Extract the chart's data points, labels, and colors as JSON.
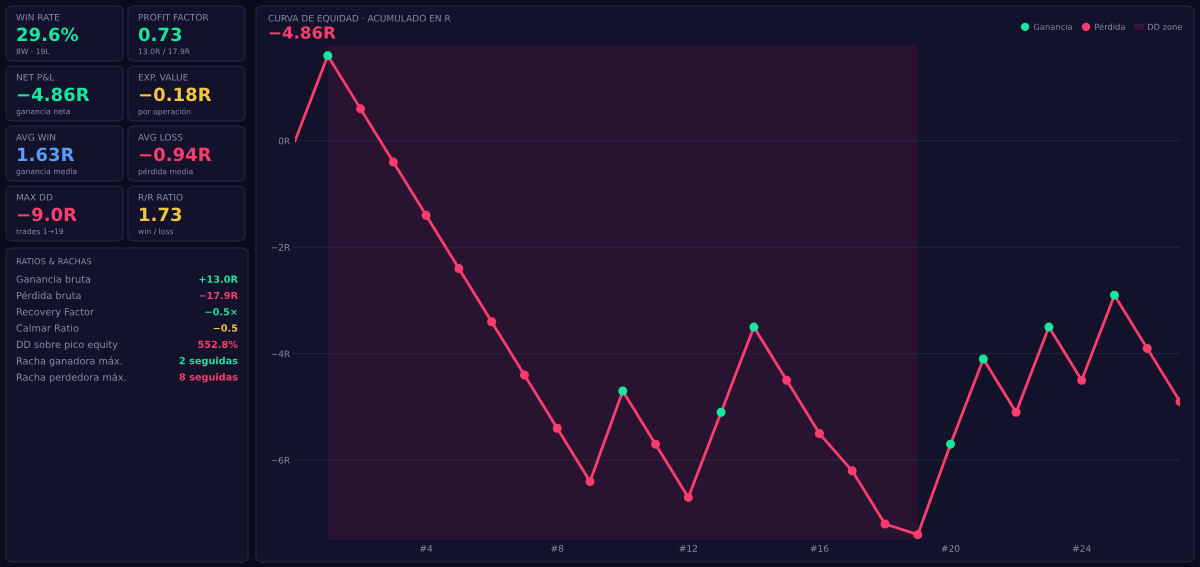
{
  "chart_data": [
    {
      "type": "other",
      "categories": [
        "WIN RATE",
        "PROFIT FACTOR",
        "NET P&L",
        "EXP. VALUE",
        "AVG WIN",
        "AVG LOSS",
        "MAX DD",
        "R/R RATIO"
      ],
      "value_labels": [
        "29.6%",
        "0.73",
        "−4.86R",
        "−0.18R",
        "1.63R",
        "−0.94R",
        "−9.0R",
        "1.73"
      ],
      "annotations": [
        "8W · 19L",
        "13.0R / 17.9R",
        "ganancia neta",
        "por operación",
        "ganancia media",
        "pérdida media",
        "trades 1→19",
        "win / loss"
      ],
      "colors": [
        "#19e6a0",
        "#19e6a0",
        "#19e6a0",
        "#f5c542",
        "#5b9cf5",
        "#ff3d6e",
        "#ff3d6e",
        "#f5c542"
      ]
    },
    {
      "type": "other",
      "title": "RATIOS & RACHAS",
      "categories": [
        "Ganancia bruta",
        "Pérdida bruta",
        "Recovery Factor",
        "Calmar Ratio",
        "DD sobre pico equity",
        "Racha ganadora máx.",
        "Racha perdedora máx."
      ],
      "value_labels": [
        "+13.0R",
        "−17.9R",
        "−0.5×",
        "−0.5",
        "552.8%",
        "2 seguidas",
        "8 seguidas"
      ],
      "colors": [
        "#19e6a0",
        "#ff3d6e",
        "#19e6a0",
        "#f5c542",
        "#ff3d6e",
        "#19e6a0",
        "#ff3d6e"
      ]
    },
    {
      "type": "line",
      "title": "CURVA DE EQUIDAD · ACUMULADO EN R",
      "subtitle": "−4.86R",
      "x": [
        0,
        1,
        2,
        3,
        4,
        5,
        6,
        7,
        8,
        9,
        10,
        11,
        12,
        13,
        14,
        15,
        16,
        17,
        18,
        19,
        20,
        21,
        22,
        23,
        24,
        25,
        26,
        27
      ],
      "series": [
        {
          "type": "line",
          "color": "#ff3d6e",
          "marker": "none",
          "values": [
            0,
            1.6,
            0.6,
            -0.4,
            -1.4,
            -2.4,
            -3.4,
            -4.4,
            -5.4,
            -6.4,
            -4.7,
            -5.7,
            -6.7,
            -5.1,
            -3.5,
            -4.5,
            -5.5,
            -6.2,
            -7.2,
            -7.4,
            -5.7,
            -4.1,
            -5.1,
            -3.5,
            -4.5,
            -2.9,
            -3.9,
            -4.9
          ]
        },
        {
          "type": "scatter",
          "name": "Ganancia",
          "color": "#19e6a0",
          "x": [
            1,
            10,
            13,
            14,
            20,
            21,
            23,
            25
          ],
          "values": [
            1.6,
            -4.7,
            -5.1,
            -3.5,
            -5.7,
            -4.1,
            -3.5,
            -2.9
          ]
        },
        {
          "type": "scatter",
          "name": "Pérdida",
          "color": "#ff3d6e",
          "x": [
            2,
            3,
            4,
            5,
            6,
            7,
            8,
            9,
            11,
            12,
            15,
            16,
            17,
            18,
            19,
            22,
            24,
            26,
            27
          ],
          "values": [
            0.6,
            -0.4,
            -1.4,
            -2.4,
            -3.4,
            -4.4,
            -5.4,
            -6.4,
            -5.7,
            -6.7,
            -4.5,
            -5.5,
            -6.2,
            -7.2,
            -7.4,
            -5.1,
            -4.5,
            -3.9,
            -4.9
          ]
        }
      ],
      "bands": [
        {
          "axis": "x",
          "from": 1,
          "to": 19,
          "label": "DD zone",
          "color": "#3a1535"
        }
      ],
      "xlim": [
        0,
        27
      ],
      "ylim": [
        -7.5,
        1.8
      ],
      "xticks": [
        {
          "value": 4,
          "label": "#4"
        },
        {
          "value": 8,
          "label": "#8"
        },
        {
          "value": 12,
          "label": "#12"
        },
        {
          "value": 16,
          "label": "#16"
        },
        {
          "value": 20,
          "label": "#20"
        },
        {
          "value": 24,
          "label": "#24"
        }
      ],
      "yticks": [
        {
          "value": 0,
          "label": "0R"
        },
        {
          "value": -2,
          "label": "−2R"
        },
        {
          "value": -4,
          "label": "−4R"
        },
        {
          "value": -6,
          "label": "−6R"
        }
      ],
      "grid": "y",
      "legend": "top right",
      "marker": "circle",
      "line_style": "solid"
    }
  ]
}
